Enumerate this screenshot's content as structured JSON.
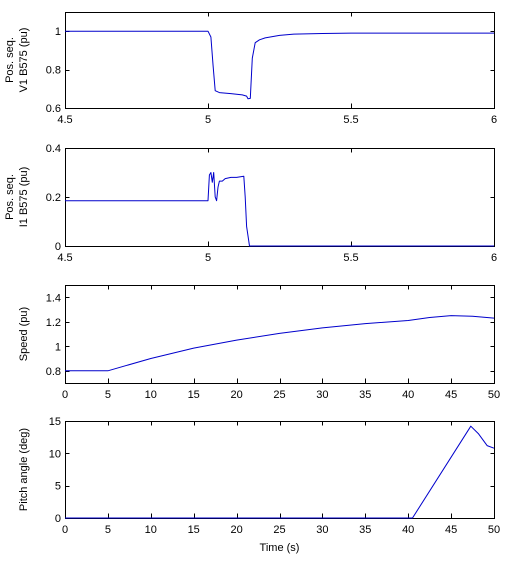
{
  "chart_data": [
    {
      "type": "line",
      "ylabel": [
        "Pos. seq.",
        "V1 B575 (pu)"
      ],
      "xlabel": "",
      "xlim": [
        4.5,
        6
      ],
      "ylim": [
        0.6,
        1.1
      ],
      "xticks": [
        4.5,
        5,
        5.5,
        6
      ],
      "yticks": [
        0.6,
        0.8,
        1
      ],
      "xtick_labels": [
        "4.5",
        "5",
        "5.5",
        "6"
      ],
      "ytick_labels": [
        "0.6",
        "0.8",
        "1"
      ],
      "grid": false,
      "color": "#0000cc",
      "x": [
        4.5,
        5.0,
        5.01,
        5.018,
        5.025,
        5.04,
        5.08,
        5.12,
        5.135,
        5.14,
        5.148,
        5.155,
        5.165,
        5.18,
        5.2,
        5.25,
        5.3,
        5.4,
        5.5,
        6.0
      ],
      "y": [
        1.0,
        1.0,
        0.97,
        0.82,
        0.69,
        0.68,
        0.675,
        0.668,
        0.662,
        0.648,
        0.65,
        0.86,
        0.94,
        0.955,
        0.965,
        0.978,
        0.985,
        0.988,
        0.99,
        0.99
      ]
    },
    {
      "type": "line",
      "ylabel": [
        "Pos. seq.",
        "I1 B575 (pu)"
      ],
      "xlabel": "",
      "xlim": [
        4.5,
        6
      ],
      "ylim": [
        0,
        0.4
      ],
      "xticks": [
        4.5,
        5,
        5.5,
        6
      ],
      "yticks": [
        0,
        0.2,
        0.4
      ],
      "xtick_labels": [
        "4.5",
        "5",
        "5.5",
        "6"
      ],
      "ytick_labels": [
        "0",
        "0.2",
        "0.4"
      ],
      "grid": false,
      "color": "#0000cc",
      "x": [
        4.5,
        5.0,
        5.005,
        5.01,
        5.015,
        5.02,
        5.025,
        5.03,
        5.035,
        5.04,
        5.05,
        5.06,
        5.08,
        5.1,
        5.125,
        5.13,
        5.135,
        5.145,
        6.0
      ],
      "y": [
        0.185,
        0.185,
        0.29,
        0.3,
        0.26,
        0.3,
        0.2,
        0.185,
        0.24,
        0.265,
        0.265,
        0.275,
        0.28,
        0.28,
        0.285,
        0.2,
        0.08,
        0.0,
        0.0
      ]
    },
    {
      "type": "line",
      "ylabel": [
        "Speed (pu)"
      ],
      "xlabel": "",
      "xlim": [
        0,
        50
      ],
      "ylim": [
        0.7,
        1.5
      ],
      "xticks": [
        0,
        5,
        10,
        15,
        20,
        25,
        30,
        35,
        40,
        45,
        50
      ],
      "yticks": [
        0.8,
        1,
        1.2,
        1.4
      ],
      "xtick_labels": [
        "0",
        "5",
        "10",
        "15",
        "20",
        "25",
        "30",
        "35",
        "40",
        "45",
        "50"
      ],
      "ytick_labels": [
        "0.8",
        "1",
        "1.2",
        "1.4"
      ],
      "grid": false,
      "color": "#0000cc",
      "x": [
        0,
        5,
        10,
        15,
        20,
        25,
        30,
        35,
        40,
        42.5,
        45,
        47.5,
        50
      ],
      "y": [
        0.8,
        0.8,
        0.9,
        0.985,
        1.05,
        1.105,
        1.15,
        1.185,
        1.21,
        1.235,
        1.25,
        1.245,
        1.23
      ]
    },
    {
      "type": "line",
      "ylabel": [
        "Pitch angle (deg)"
      ],
      "xlabel": "Time (s)",
      "xlim": [
        0,
        50
      ],
      "ylim": [
        0,
        15
      ],
      "xticks": [
        0,
        5,
        10,
        15,
        20,
        25,
        30,
        35,
        40,
        45,
        50
      ],
      "yticks": [
        0,
        5,
        10,
        15
      ],
      "xtick_labels": [
        "0",
        "5",
        "10",
        "15",
        "20",
        "25",
        "30",
        "35",
        "40",
        "45",
        "50"
      ],
      "ytick_labels": [
        "0",
        "5",
        "10",
        "15"
      ],
      "grid": false,
      "color": "#0000cc",
      "x": [
        0,
        40.5,
        47.3,
        48.2,
        49.2,
        50
      ],
      "y": [
        0,
        0,
        14.2,
        13.0,
        11.2,
        10.8
      ]
    }
  ]
}
